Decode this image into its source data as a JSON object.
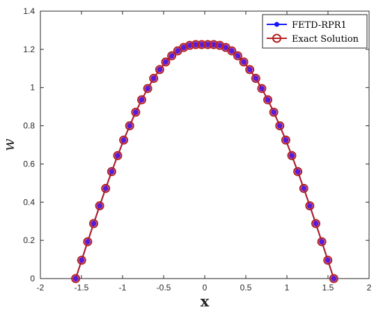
{
  "chart_data": {
    "type": "line",
    "title": "",
    "xlabel": "x",
    "ylabel": "w",
    "xlim": [
      -2,
      2
    ],
    "ylim": [
      0,
      1.4
    ],
    "grid": false,
    "legend_position": "top-right",
    "xticks": [
      "-2",
      "-1.5",
      "-1",
      "-0.5",
      "0",
      "0.5",
      "1",
      "1.5",
      "2"
    ],
    "yticks": [
      "0",
      "0.2",
      "0.4",
      "0.6",
      "0.8",
      "1",
      "1.2",
      "1.4"
    ],
    "x": [
      -1.5708,
      -1.4978,
      -1.4247,
      -1.3517,
      -1.2786,
      -1.2055,
      -1.1325,
      -1.0594,
      -0.9864,
      -0.9133,
      -0.8403,
      -0.7672,
      -0.6942,
      -0.6211,
      -0.548,
      -0.475,
      -0.4019,
      -0.3289,
      -0.2558,
      -0.1828,
      -0.1097,
      -0.0366,
      0.0366,
      0.1097,
      0.1828,
      0.2558,
      0.3289,
      0.4019,
      0.475,
      0.548,
      0.6211,
      0.6942,
      0.7672,
      0.8403,
      0.9133,
      0.9864,
      1.0594,
      1.1325,
      1.2055,
      1.2786,
      1.3517,
      1.4247,
      1.4978,
      1.5708
    ],
    "series": [
      {
        "name": "FETD-RPR1",
        "color": "#1414ff",
        "marker": "filled-circle",
        "values": [
          0.0,
          0.096,
          0.193,
          0.288,
          0.381,
          0.472,
          0.56,
          0.644,
          0.725,
          0.8,
          0.871,
          0.936,
          0.995,
          1.048,
          1.094,
          1.134,
          1.166,
          1.192,
          1.21,
          1.221,
          1.225,
          1.225,
          1.225,
          1.225,
          1.221,
          1.21,
          1.192,
          1.166,
          1.134,
          1.094,
          1.048,
          0.995,
          0.936,
          0.871,
          0.8,
          0.725,
          0.644,
          0.56,
          0.472,
          0.381,
          0.288,
          0.193,
          0.096,
          0.0
        ]
      },
      {
        "name": "Exact Solution",
        "color": "#b22222",
        "marker": "open-circle",
        "values": [
          0.0,
          0.096,
          0.193,
          0.288,
          0.381,
          0.472,
          0.56,
          0.644,
          0.725,
          0.8,
          0.871,
          0.936,
          0.995,
          1.048,
          1.094,
          1.134,
          1.166,
          1.192,
          1.21,
          1.221,
          1.225,
          1.225,
          1.225,
          1.225,
          1.221,
          1.21,
          1.192,
          1.166,
          1.134,
          1.094,
          1.048,
          0.995,
          0.936,
          0.871,
          0.8,
          0.725,
          0.644,
          0.56,
          0.472,
          0.381,
          0.288,
          0.193,
          0.096,
          0.0
        ]
      }
    ]
  }
}
